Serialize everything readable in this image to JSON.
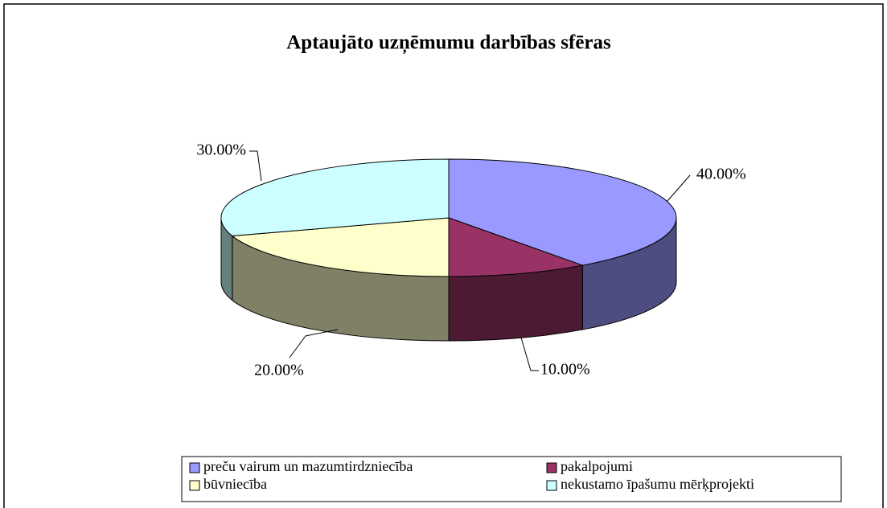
{
  "chart_data": {
    "type": "pie3d",
    "title": "Aptaujāto uzņēmumu darbības sfēras",
    "categories": [
      "preču vairum un mazumtirdzniecība",
      "pakalpojumi",
      "būvniecība",
      "nekustamo īpašumu mērķprojekti"
    ],
    "values": [
      40,
      10,
      20,
      30
    ],
    "value_labels": [
      "40.00%",
      "10.00%",
      "20.00%",
      "30.00%"
    ],
    "colors": [
      "#9999ff",
      "#993366",
      "#ffffcc",
      "#ccffff"
    ],
    "legend": "bottom"
  }
}
